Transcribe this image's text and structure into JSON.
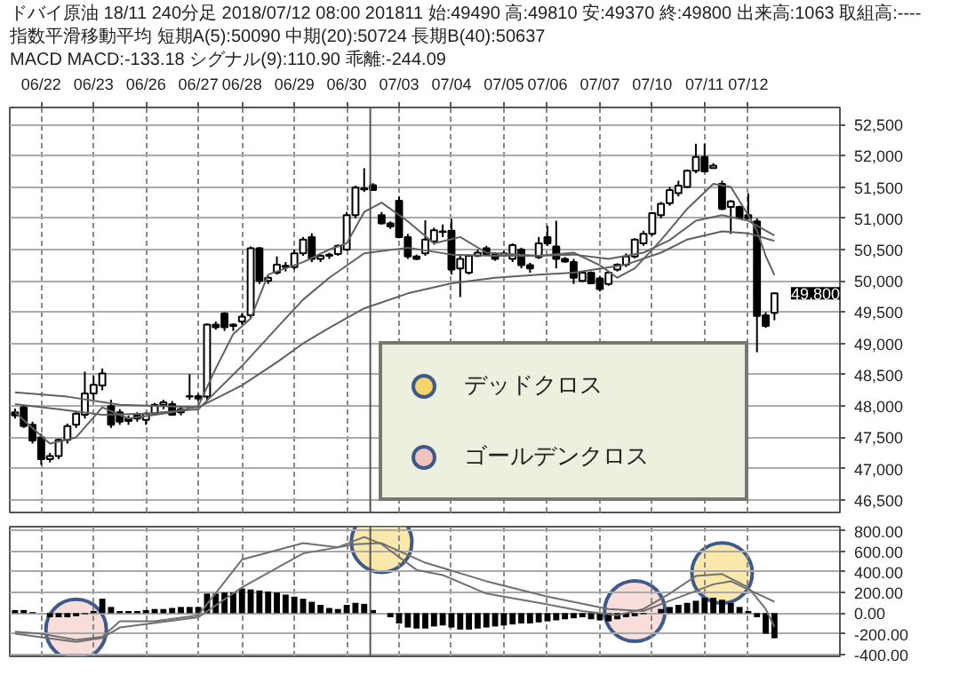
{
  "chart_data": [
    {
      "type": "candlestick",
      "title": "ドバイ原油 18/11 240分足 2018/07/12 08:00 201811 始:49490 高:49810 安:49370 終:49800 出来高:1063 取組高:----",
      "subtitle": "指数平滑移動平均 短期A(5):50090 中期(20):50724 長期B(40):50637",
      "annotations": [
        "MACD MACD:-133.18 シグナル(9):110.90 乖離:-244.09",
        "49,800"
      ],
      "categories": [
        null,
        null,
        null,
        "06/22",
        null,
        null,
        null,
        null,
        null,
        "06/23",
        null,
        null,
        null,
        null,
        null,
        "06/26",
        null,
        null,
        null,
        null,
        null,
        "06/27",
        null,
        null,
        null,
        null,
        "06/28",
        null,
        null,
        null,
        null,
        null,
        "06/29",
        null,
        null,
        null,
        null,
        null,
        "06/30",
        null,
        null,
        null,
        null,
        null,
        "07/03",
        null,
        null,
        null,
        null,
        null,
        "07/04",
        null,
        null,
        null,
        null,
        null,
        "07/05",
        null,
        null,
        null,
        null,
        "07/06",
        null,
        null,
        null,
        null,
        null,
        "07/07",
        null,
        null,
        null,
        null,
        null,
        "07/10",
        null,
        null,
        null,
        null,
        null,
        "07/11",
        null,
        null,
        null,
        null,
        "07/12",
        null,
        null,
        null
      ],
      "ohlc": [
        [
          47900,
          47960,
          47800,
          47850
        ],
        [
          47980,
          48000,
          47650,
          47680
        ],
        [
          47700,
          47750,
          47400,
          47450
        ],
        [
          47500,
          47560,
          47060,
          47150
        ],
        [
          47150,
          47250,
          47100,
          47200
        ],
        [
          47200,
          47480,
          47150,
          47460
        ],
        [
          47460,
          47720,
          47400,
          47680
        ],
        [
          47700,
          47900,
          47650,
          47880
        ],
        [
          47860,
          48550,
          47800,
          48200
        ],
        [
          48200,
          48480,
          48100,
          48340
        ],
        [
          48330,
          48600,
          48250,
          48520
        ],
        [
          48000,
          48100,
          47650,
          47700
        ],
        [
          47900,
          47950,
          47700,
          47750
        ],
        [
          47800,
          47850,
          47700,
          47760
        ],
        [
          47850,
          47900,
          47750,
          47800
        ],
        [
          47780,
          47900,
          47700,
          47880
        ],
        [
          47880,
          48050,
          47850,
          48020
        ],
        [
          48020,
          48100,
          47950,
          48060
        ],
        [
          48030,
          48080,
          47850,
          47860
        ],
        [
          47900,
          48000,
          47850,
          47950
        ],
        [
          48150,
          48510,
          48100,
          48160
        ],
        [
          48160,
          48200,
          48080,
          48120
        ],
        [
          48150,
          49320,
          48100,
          49300
        ],
        [
          49300,
          49350,
          49220,
          49260
        ],
        [
          49480,
          49500,
          49200,
          49260
        ],
        [
          49280,
          49320,
          49200,
          49300
        ],
        [
          49350,
          49480,
          49300,
          49430
        ],
        [
          49450,
          50550,
          49400,
          50520
        ],
        [
          50520,
          50540,
          49950,
          50000
        ],
        [
          50000,
          50080,
          49950,
          50050
        ],
        [
          50130,
          50390,
          50100,
          50260
        ],
        [
          50240,
          50300,
          50150,
          50220
        ],
        [
          50220,
          50500,
          50180,
          50440
        ],
        [
          50440,
          50700,
          50400,
          50660
        ],
        [
          50700,
          50760,
          50300,
          50350
        ],
        [
          50350,
          50420,
          50300,
          50400
        ],
        [
          50400,
          50450,
          50350,
          50420
        ],
        [
          50430,
          50580,
          50400,
          50560
        ],
        [
          50500,
          51100,
          50480,
          51050
        ],
        [
          51050,
          51520,
          51000,
          51490
        ],
        [
          51460,
          51800,
          51420,
          51480
        ],
        [
          51530,
          51560,
          51440,
          51450
        ],
        [
          51050,
          51100,
          50900,
          50920
        ],
        [
          50920,
          50950,
          50830,
          50870
        ],
        [
          51280,
          51350,
          50680,
          50700
        ],
        [
          50700,
          50750,
          50350,
          50390
        ],
        [
          50390,
          50420,
          50330,
          50350
        ],
        [
          50440,
          50970,
          50400,
          50660
        ],
        [
          50630,
          50850,
          50580,
          50810
        ],
        [
          50780,
          50900,
          50700,
          50790
        ],
        [
          50800,
          50990,
          50100,
          50180
        ],
        [
          50200,
          50420,
          49740,
          50350
        ],
        [
          50130,
          50420,
          50100,
          50400
        ],
        [
          50400,
          50500,
          50380,
          50450
        ],
        [
          50520,
          50560,
          50400,
          50430
        ],
        [
          50420,
          50450,
          50320,
          50350
        ],
        [
          50400,
          50480,
          50380,
          50440
        ],
        [
          50350,
          50600,
          50300,
          50570
        ],
        [
          50500,
          50530,
          50200,
          50250
        ],
        [
          50250,
          50290,
          50130,
          50200
        ],
        [
          50380,
          50700,
          50350,
          50600
        ],
        [
          50700,
          50880,
          50560,
          50600
        ],
        [
          50550,
          50960,
          50200,
          50350
        ],
        [
          50350,
          50380,
          50290,
          50310
        ],
        [
          50300,
          50350,
          49950,
          50050
        ],
        [
          50000,
          50160,
          49980,
          50130
        ],
        [
          50130,
          50150,
          49950,
          49960
        ],
        [
          50040,
          50080,
          49830,
          49870
        ],
        [
          49950,
          50150,
          49920,
          50130
        ],
        [
          50180,
          50280,
          50150,
          50260
        ],
        [
          50260,
          50440,
          50220,
          50390
        ],
        [
          50390,
          50680,
          50360,
          50660
        ],
        [
          50600,
          50800,
          50560,
          50750
        ],
        [
          50750,
          51100,
          50720,
          51080
        ],
        [
          51050,
          51260,
          51000,
          51230
        ],
        [
          51240,
          51500,
          51200,
          51450
        ],
        [
          51400,
          51600,
          51350,
          51520
        ],
        [
          51500,
          51780,
          51480,
          51760
        ],
        [
          51760,
          52190,
          51720,
          51980
        ],
        [
          51980,
          52190,
          51730,
          51750
        ],
        [
          51800,
          51880,
          51800,
          51840
        ],
        [
          51550,
          51600,
          51130,
          51150
        ],
        [
          51180,
          51290,
          50750,
          51270
        ],
        [
          51180,
          51200,
          50990,
          51010
        ],
        [
          51050,
          51400,
          50990,
          51000
        ],
        [
          50950,
          51000,
          48860,
          49440
        ],
        [
          49450,
          49500,
          49250,
          49280
        ],
        [
          49490,
          49810,
          49370,
          49800
        ]
      ],
      "series": [
        {
          "type": "line",
          "color": "#606060",
          "values": [
            47900,
            null,
            null,
            null,
            47400,
            null,
            null,
            47500,
            null,
            null,
            47980,
            null,
            null,
            47800,
            null,
            null,
            null,
            null,
            47900,
            null,
            null,
            48000,
            null,
            48600,
            null,
            49150,
            null,
            49400,
            null,
            50100,
            null,
            null,
            null,
            50300,
            null,
            null,
            50500,
            null,
            50600,
            null,
            51100,
            null,
            51250,
            null,
            null,
            50950,
            null,
            null,
            50600,
            null,
            null,
            50700,
            null,
            null,
            50450,
            null,
            null,
            null,
            null,
            null,
            50400,
            null,
            null,
            null,
            50450,
            null,
            null,
            50250,
            null,
            50050,
            null,
            50200,
            null,
            null,
            50650,
            null,
            null,
            51150,
            null,
            null,
            51550,
            null,
            51500,
            null,
            51050,
            50800,
            50400,
            50090
          ]
        },
        {
          "type": "line",
          "color": "#606060",
          "values": [
            48030,
            null,
            null,
            null,
            null,
            47950,
            null,
            null,
            null,
            null,
            47860,
            null,
            null,
            null,
            null,
            47880,
            null,
            null,
            null,
            null,
            null,
            47950,
            null,
            null,
            null,
            null,
            48640,
            null,
            null,
            null,
            49250,
            null,
            null,
            49700,
            null,
            null,
            50050,
            null,
            null,
            null,
            50440,
            null,
            null,
            null,
            null,
            50530,
            null,
            null,
            null,
            null,
            50420,
            null,
            null,
            null,
            null,
            50400,
            null,
            null,
            null,
            null,
            50400,
            null,
            null,
            null,
            50420,
            null,
            null,
            null,
            50350,
            null,
            null,
            null,
            50450,
            null,
            null,
            50650,
            null,
            null,
            50960,
            null,
            null,
            51050,
            null,
            null,
            50960,
            null,
            null,
            50724
          ]
        },
        {
          "type": "line",
          "color": "#606060",
          "values": [
            48220,
            null,
            null,
            null,
            null,
            null,
            48150,
            null,
            null,
            null,
            null,
            null,
            48020,
            null,
            null,
            null,
            null,
            null,
            null,
            null,
            null,
            47980,
            null,
            null,
            null,
            null,
            48330,
            null,
            null,
            null,
            48700,
            null,
            null,
            49000,
            null,
            null,
            49250,
            null,
            null,
            null,
            49560,
            null,
            null,
            null,
            null,
            49800,
            null,
            null,
            null,
            null,
            49960,
            null,
            null,
            null,
            null,
            50050,
            null,
            null,
            null,
            null,
            50100,
            null,
            null,
            null,
            50130,
            null,
            null,
            null,
            null,
            null,
            50260,
            null,
            null,
            null,
            50450,
            null,
            null,
            50660,
            null,
            null,
            null,
            50790,
            null,
            null,
            50760,
            null,
            null,
            50637
          ]
        }
      ],
      "ylim": [
        46300,
        52770
      ],
      "yticks": [
        {
          "value": 46500,
          "label": "46,500"
        },
        {
          "value": 47000,
          "label": "47,000"
        },
        {
          "value": 47500,
          "label": "47,500"
        },
        {
          "value": 48000,
          "label": "48,000"
        },
        {
          "value": 48500,
          "label": "48,500"
        },
        {
          "value": 49000,
          "label": "49,000"
        },
        {
          "value": 49500,
          "label": "49,500"
        },
        {
          "value": 50000,
          "label": "50,000"
        },
        {
          "value": 50500,
          "label": "50,500"
        },
        {
          "value": 51000,
          "label": "51,000"
        },
        {
          "value": 51500,
          "label": "51,500"
        },
        {
          "value": 52000,
          "label": "52,000"
        },
        {
          "value": 52500,
          "label": "52,500"
        }
      ],
      "grid": true
    },
    {
      "type": "bar",
      "color": "#000000",
      "categories": [
        null,
        null,
        null,
        null,
        null,
        null,
        null,
        null,
        null,
        null,
        null,
        null,
        null,
        null,
        null,
        null,
        null,
        null,
        null,
        null,
        null,
        null,
        null,
        null,
        null,
        null,
        null,
        null,
        null,
        null,
        null,
        null,
        null,
        null,
        null,
        null,
        null,
        null,
        null,
        null,
        null,
        null,
        null,
        null,
        null,
        null,
        null,
        null,
        null,
        null,
        null,
        null,
        null,
        null,
        null,
        null,
        null,
        null,
        null,
        null,
        null,
        null,
        null,
        null,
        null,
        null,
        null,
        null,
        null,
        null,
        null,
        null,
        null,
        null,
        null,
        null,
        null,
        null,
        null,
        null,
        null,
        null,
        null,
        null,
        null,
        null,
        null,
        null
      ],
      "values": [
        30,
        30,
        10,
        0,
        -40,
        -40,
        -40,
        -30,
        -10,
        20,
        140,
        60,
        20,
        20,
        20,
        30,
        40,
        40,
        50,
        60,
        60,
        60,
        190,
        190,
        200,
        200,
        240,
        230,
        220,
        210,
        200,
        180,
        160,
        140,
        110,
        80,
        50,
        40,
        80,
        100,
        90,
        30,
        0,
        -40,
        -100,
        -140,
        -150,
        -150,
        -130,
        -120,
        -140,
        -160,
        -160,
        -150,
        -140,
        -130,
        -120,
        -110,
        -100,
        -100,
        -90,
        -80,
        -70,
        -60,
        -50,
        -40,
        -60,
        -70,
        -80,
        -60,
        -40,
        -30,
        -10,
        0,
        40,
        60,
        80,
        100,
        120,
        150,
        150,
        130,
        100,
        60,
        20,
        -40,
        -200,
        -244.09
      ],
      "series": [
        {
          "type": "line",
          "color": "#707070",
          "values": [
            -180,
            null,
            null,
            -200,
            null,
            null,
            null,
            -260,
            null,
            null,
            -230,
            null,
            -80,
            null,
            null,
            null,
            -80,
            null,
            null,
            null,
            null,
            -20,
            null,
            null,
            null,
            null,
            520,
            null,
            null,
            null,
            null,
            null,
            null,
            680,
            null,
            null,
            null,
            640,
            null,
            null,
            740,
            null,
            670,
            null,
            null,
            null,
            420,
            null,
            null,
            370,
            null,
            null,
            null,
            null,
            190,
            null,
            null,
            null,
            null,
            null,
            100,
            null,
            null,
            null,
            null,
            20,
            null,
            null,
            null,
            -20,
            null,
            null,
            40,
            null,
            null,
            190,
            null,
            null,
            360,
            null,
            null,
            380,
            null,
            null,
            250,
            null,
            40,
            -133.18
          ]
        },
        {
          "type": "line",
          "color": "#707070",
          "values": [
            -200,
            null,
            null,
            null,
            null,
            null,
            null,
            -280,
            null,
            null,
            -240,
            null,
            -140,
            null,
            null,
            null,
            null,
            null,
            null,
            null,
            null,
            -40,
            null,
            null,
            null,
            null,
            250,
            null,
            null,
            null,
            null,
            null,
            null,
            580,
            null,
            null,
            null,
            null,
            null,
            670,
            null,
            null,
            680,
            null,
            null,
            null,
            null,
            490,
            null,
            null,
            null,
            null,
            null,
            null,
            310,
            null,
            null,
            null,
            null,
            null,
            null,
            160,
            null,
            null,
            null,
            null,
            null,
            null,
            40,
            null,
            null,
            null,
            20,
            null,
            null,
            120,
            null,
            null,
            null,
            null,
            280,
            null,
            310,
            null,
            null,
            190,
            null,
            110.9
          ]
        },
        {
          "type": "scatter",
          "name": "デッドクロス",
          "color": "#f5d56a",
          "marker": "circle",
          "values": [
            null,
            null,
            null,
            null,
            null,
            null,
            null,
            null,
            null,
            null,
            null,
            null,
            null,
            null,
            null,
            null,
            null,
            null,
            null,
            null,
            null,
            null,
            null,
            null,
            null,
            null,
            null,
            null,
            null,
            null,
            null,
            null,
            null,
            null,
            null,
            null,
            null,
            null,
            null,
            null,
            null,
            null,
            690,
            null,
            null,
            null,
            null,
            null,
            null,
            null,
            null,
            null,
            null,
            null,
            null,
            null,
            null,
            null,
            null,
            null,
            null,
            null,
            null,
            null,
            null,
            null,
            null,
            null,
            null,
            null,
            null,
            null,
            null,
            null,
            null,
            null,
            null,
            null,
            null,
            null,
            null,
            390,
            null,
            null,
            null,
            null,
            null,
            null
          ]
        },
        {
          "type": "scatter",
          "name": "ゴールデンクロス",
          "color": "#f2c2bc",
          "marker": "circle",
          "values": [
            null,
            null,
            null,
            null,
            null,
            null,
            null,
            -160,
            null,
            null,
            null,
            null,
            null,
            null,
            null,
            null,
            null,
            null,
            null,
            null,
            null,
            null,
            null,
            null,
            null,
            null,
            null,
            null,
            null,
            null,
            null,
            null,
            null,
            null,
            null,
            null,
            null,
            null,
            null,
            null,
            null,
            null,
            null,
            null,
            null,
            null,
            null,
            null,
            null,
            null,
            null,
            null,
            null,
            null,
            null,
            null,
            null,
            null,
            null,
            null,
            null,
            null,
            null,
            null,
            null,
            null,
            null,
            null,
            null,
            null,
            null,
            20,
            null,
            null,
            null,
            null,
            null,
            null,
            null,
            null,
            null,
            null,
            null,
            null,
            null,
            null,
            null,
            null
          ]
        }
      ],
      "legend": "top",
      "tick_labels": "y",
      "ylim": [
        -420,
        840
      ],
      "yticks": [
        {
          "value": -400,
          "label": "-400.00"
        },
        {
          "value": -200,
          "label": "-200.00"
        },
        {
          "value": 0,
          "label": "0.00"
        },
        {
          "value": 200,
          "label": "200.00"
        },
        {
          "value": 400,
          "label": "400.00"
        },
        {
          "value": 600,
          "label": "600.00"
        },
        {
          "value": 800,
          "label": "800.00"
        }
      ],
      "grid": true
    }
  ]
}
